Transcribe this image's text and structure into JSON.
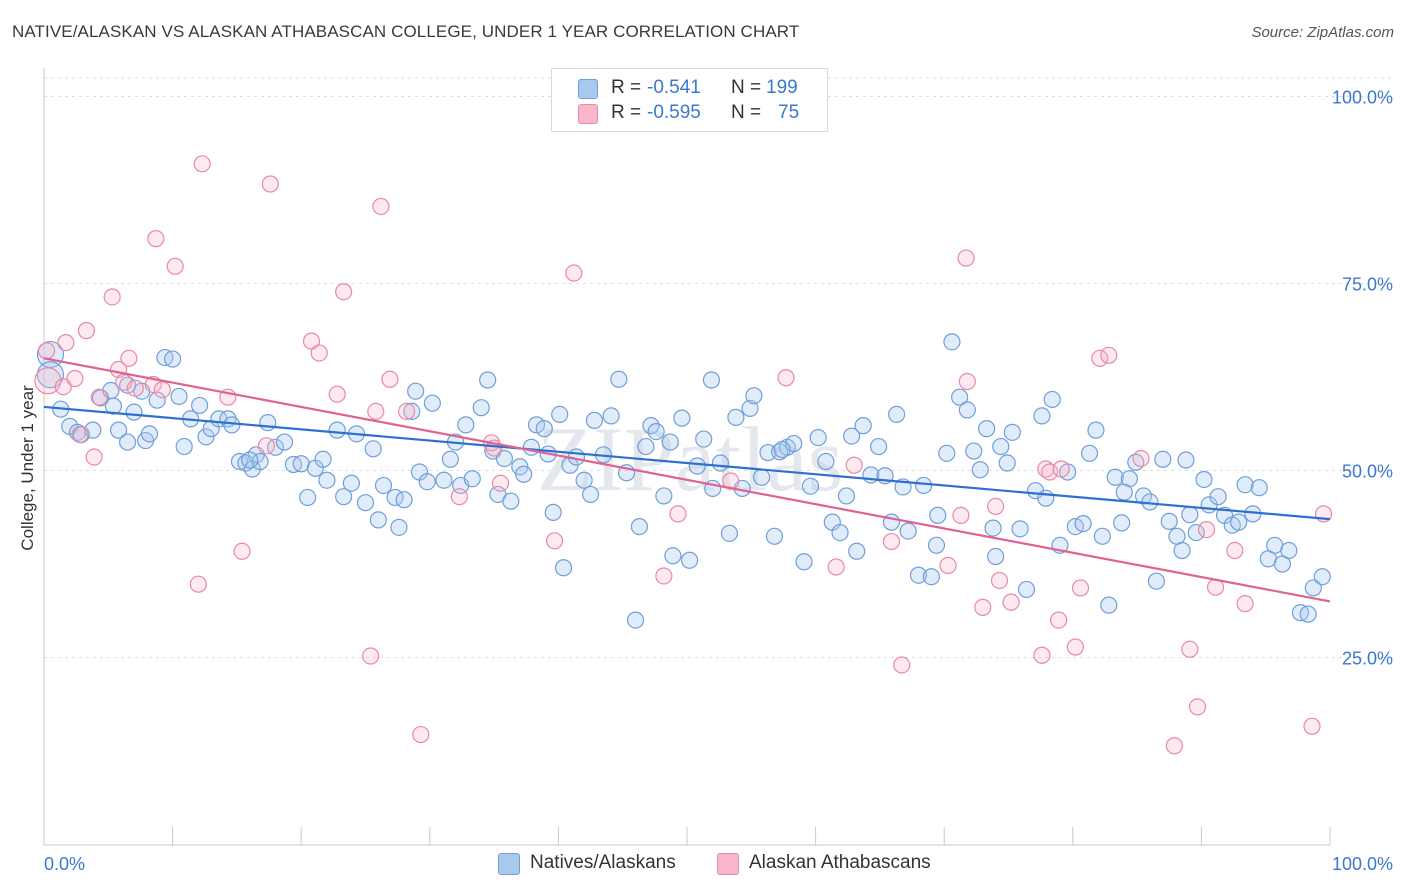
{
  "title": "NATIVE/ALASKAN VS ALASKAN ATHABASCAN COLLEGE, UNDER 1 YEAR CORRELATION CHART",
  "source": "Source: ZipAtlas.com",
  "watermark": "ZIPatlas",
  "legend_top": {
    "rows": [
      {
        "r_label": "R =",
        "r_value": "-0.541",
        "n_label": "N =",
        "n_value": "199",
        "color": "#a9c8f0",
        "border": "#6f9fd8"
      },
      {
        "r_label": "R =",
        "r_value": "-0.595",
        "n_label": "N =",
        "n_value": "75",
        "color": "#f7b6cb",
        "border": "#e889a8"
      }
    ]
  },
  "legend_bottom": [
    {
      "label": "Natives/Alaskans",
      "color": "#a9c8f0",
      "border": "#6f9fd8"
    },
    {
      "label": "Alaskan Athabascans",
      "color": "#f7b6cb",
      "border": "#e889a8"
    }
  ],
  "colors": {
    "blue_line": "#2f6fd0",
    "pink_line": "#e0628f",
    "blue_fill": "rgba(169,200,240,0.35)",
    "blue_stroke": "#6f9fd8",
    "pink_fill": "rgba(247,182,203,0.30)",
    "pink_stroke": "#e889a8",
    "grid": "#dedede",
    "axis_text": "#3b78cf"
  },
  "chart_data": {
    "type": "scatter",
    "title": "NATIVE/ALASKAN VS ALASKAN ATHABASCAN COLLEGE, UNDER 1 YEAR CORRELATION CHART",
    "xlabel": "",
    "ylabel": "College, Under 1 year",
    "xlim": [
      0,
      100
    ],
    "ylim": [
      0,
      100
    ],
    "x_tick_labels": [
      "0.0%",
      "100.0%"
    ],
    "y_tick_labels": [
      "100.0%",
      "75.0%",
      "50.0%",
      "25.0%"
    ],
    "y_ticks": [
      100,
      75,
      50,
      25
    ],
    "grid": "horizontal dashed",
    "legend_position": "top-center",
    "series": [
      {
        "name": "Natives/Alaskans",
        "trend": {
          "x": [
            0,
            100
          ],
          "y": [
            58.5,
            43.5
          ]
        },
        "points": [
          [
            0.5,
            65.5
          ],
          [
            0.5,
            62.8
          ],
          [
            1.3,
            58.2
          ],
          [
            2.0,
            55.9
          ],
          [
            2.6,
            55.1
          ],
          [
            2.9,
            54.8
          ],
          [
            3.8,
            55.4
          ],
          [
            4.4,
            59.7
          ],
          [
            5.2,
            60.7
          ],
          [
            5.4,
            58.6
          ],
          [
            5.8,
            55.4
          ],
          [
            6.5,
            61.4
          ],
          [
            7.0,
            57.8
          ],
          [
            7.6,
            60.6
          ],
          [
            7.9,
            54.0
          ],
          [
            8.2,
            54.9
          ],
          [
            8.8,
            59.4
          ],
          [
            9.4,
            65.1
          ],
          [
            10.0,
            64.9
          ],
          [
            10.5,
            59.9
          ],
          [
            10.9,
            53.2
          ],
          [
            11.4,
            56.9
          ],
          [
            12.1,
            58.7
          ],
          [
            12.6,
            54.5
          ],
          [
            13.0,
            55.6
          ],
          [
            13.6,
            56.9
          ],
          [
            14.3,
            56.9
          ],
          [
            14.6,
            56.1
          ],
          [
            15.2,
            51.2
          ],
          [
            15.7,
            51.0
          ],
          [
            16.2,
            50.2
          ],
          [
            16.5,
            52.1
          ],
          [
            16.8,
            51.2
          ],
          [
            17.4,
            56.4
          ],
          [
            18.0,
            53.1
          ],
          [
            18.7,
            53.8
          ],
          [
            19.4,
            50.8
          ],
          [
            20.0,
            50.9
          ],
          [
            20.5,
            46.4
          ],
          [
            21.1,
            50.3
          ],
          [
            21.7,
            51.5
          ],
          [
            22.0,
            48.7
          ],
          [
            22.8,
            55.4
          ],
          [
            23.3,
            46.5
          ],
          [
            23.9,
            48.3
          ],
          [
            24.3,
            54.9
          ],
          [
            25.0,
            45.7
          ],
          [
            25.6,
            52.9
          ],
          [
            26.0,
            43.4
          ],
          [
            26.4,
            48.0
          ],
          [
            27.3,
            46.4
          ],
          [
            27.6,
            42.4
          ],
          [
            28.0,
            46.1
          ],
          [
            28.6,
            57.9
          ],
          [
            28.9,
            60.6
          ],
          [
            29.2,
            49.8
          ],
          [
            29.8,
            48.5
          ],
          [
            30.2,
            59.0
          ],
          [
            31.1,
            48.7
          ],
          [
            31.6,
            51.5
          ],
          [
            32.0,
            53.8
          ],
          [
            32.4,
            48.0
          ],
          [
            32.8,
            56.1
          ],
          [
            33.3,
            48.9
          ],
          [
            34.0,
            58.4
          ],
          [
            34.5,
            62.1
          ],
          [
            34.9,
            52.6
          ],
          [
            35.3,
            46.8
          ],
          [
            35.8,
            51.6
          ],
          [
            36.3,
            45.9
          ],
          [
            37.0,
            50.5
          ],
          [
            37.9,
            53.1
          ],
          [
            38.3,
            56.1
          ],
          [
            38.9,
            55.6
          ],
          [
            39.2,
            52.2
          ],
          [
            39.6,
            44.4
          ],
          [
            40.1,
            57.5
          ],
          [
            40.4,
            37.0
          ],
          [
            40.9,
            50.7
          ],
          [
            41.4,
            51.8
          ],
          [
            42.0,
            48.7
          ],
          [
            42.5,
            46.8
          ],
          [
            42.8,
            56.7
          ],
          [
            43.5,
            52.1
          ],
          [
            44.1,
            57.3
          ],
          [
            44.7,
            62.2
          ],
          [
            45.3,
            49.7
          ],
          [
            46.0,
            30.0
          ],
          [
            46.3,
            42.5
          ],
          [
            46.8,
            53.2
          ],
          [
            47.2,
            56.0
          ],
          [
            47.6,
            55.2
          ],
          [
            48.2,
            46.6
          ],
          [
            48.7,
            53.8
          ],
          [
            48.9,
            38.6
          ],
          [
            49.6,
            57.0
          ],
          [
            50.2,
            38.0
          ],
          [
            50.8,
            50.6
          ],
          [
            51.3,
            54.2
          ],
          [
            51.9,
            62.1
          ],
          [
            52.6,
            51.0
          ],
          [
            53.3,
            41.6
          ],
          [
            53.8,
            57.1
          ],
          [
            54.3,
            47.6
          ],
          [
            54.9,
            58.3
          ],
          [
            55.2,
            60.0
          ],
          [
            55.8,
            49.1
          ],
          [
            56.3,
            52.4
          ],
          [
            56.8,
            41.2
          ],
          [
            57.2,
            52.5
          ],
          [
            57.8,
            53.1
          ],
          [
            58.3,
            53.6
          ],
          [
            59.1,
            37.8
          ],
          [
            59.6,
            47.9
          ],
          [
            60.2,
            54.4
          ],
          [
            60.8,
            51.2
          ],
          [
            61.3,
            43.1
          ],
          [
            61.9,
            41.7
          ],
          [
            62.4,
            46.6
          ],
          [
            62.8,
            54.6
          ],
          [
            63.2,
            39.2
          ],
          [
            63.7,
            56.0
          ],
          [
            64.3,
            49.4
          ],
          [
            64.9,
            53.2
          ],
          [
            65.4,
            49.3
          ],
          [
            65.9,
            43.1
          ],
          [
            66.3,
            57.5
          ],
          [
            66.8,
            47.8
          ],
          [
            67.2,
            41.9
          ],
          [
            68.0,
            36.0
          ],
          [
            68.4,
            48.0
          ],
          [
            69.0,
            35.8
          ],
          [
            69.4,
            40.0
          ],
          [
            70.2,
            52.3
          ],
          [
            70.6,
            67.2
          ],
          [
            71.2,
            59.8
          ],
          [
            71.8,
            58.1
          ],
          [
            72.3,
            52.6
          ],
          [
            72.8,
            50.1
          ],
          [
            73.3,
            55.6
          ],
          [
            73.8,
            42.3
          ],
          [
            74.4,
            53.2
          ],
          [
            74.9,
            51.0
          ],
          [
            75.3,
            55.1
          ],
          [
            75.9,
            42.2
          ],
          [
            76.4,
            34.1
          ],
          [
            77.1,
            47.3
          ],
          [
            77.6,
            57.3
          ],
          [
            77.9,
            46.3
          ],
          [
            78.4,
            59.5
          ],
          [
            79.0,
            40.0
          ],
          [
            79.6,
            49.8
          ],
          [
            80.2,
            42.5
          ],
          [
            80.8,
            42.9
          ],
          [
            81.3,
            52.3
          ],
          [
            81.8,
            55.4
          ],
          [
            82.3,
            41.2
          ],
          [
            82.8,
            32.0
          ],
          [
            83.3,
            49.1
          ],
          [
            83.8,
            43.0
          ],
          [
            84.4,
            48.9
          ],
          [
            84.9,
            51.1
          ],
          [
            85.5,
            46.6
          ],
          [
            86.0,
            45.8
          ],
          [
            86.5,
            35.2
          ],
          [
            87.0,
            51.5
          ],
          [
            87.5,
            43.2
          ],
          [
            88.1,
            41.2
          ],
          [
            88.5,
            39.3
          ],
          [
            89.1,
            44.1
          ],
          [
            89.6,
            41.7
          ],
          [
            90.2,
            48.8
          ],
          [
            90.6,
            45.4
          ],
          [
            91.3,
            46.5
          ],
          [
            91.8,
            44.0
          ],
          [
            92.4,
            42.7
          ],
          [
            92.9,
            43.1
          ],
          [
            93.4,
            48.1
          ],
          [
            94.0,
            44.2
          ],
          [
            94.5,
            47.7
          ],
          [
            95.2,
            38.2
          ],
          [
            95.7,
            40.0
          ],
          [
            96.3,
            37.5
          ],
          [
            96.8,
            39.3
          ],
          [
            97.7,
            31.0
          ],
          [
            98.3,
            30.8
          ],
          [
            98.7,
            34.3
          ],
          [
            99.4,
            35.8
          ],
          [
            88.8,
            51.4
          ],
          [
            84.0,
            47.1
          ],
          [
            74.0,
            38.5
          ],
          [
            69.5,
            44.0
          ],
          [
            57.4,
            52.8
          ],
          [
            52.0,
            47.6
          ],
          [
            37.3,
            49.5
          ],
          [
            16.0,
            51.4
          ],
          [
            6.5,
            53.8
          ]
        ]
      },
      {
        "name": "Alaskan Athabascans",
        "trend": {
          "x": [
            0,
            100
          ],
          "y": [
            65.0,
            32.5
          ]
        },
        "points": [
          [
            0.3,
            62.0
          ],
          [
            1.5,
            61.2
          ],
          [
            1.7,
            67.1
          ],
          [
            2.4,
            62.3
          ],
          [
            2.8,
            54.8
          ],
          [
            3.3,
            68.7
          ],
          [
            3.9,
            51.8
          ],
          [
            4.3,
            59.8
          ],
          [
            5.3,
            73.2
          ],
          [
            5.8,
            63.5
          ],
          [
            6.2,
            61.8
          ],
          [
            6.6,
            65.0
          ],
          [
            7.1,
            61.0
          ],
          [
            8.5,
            61.5
          ],
          [
            8.7,
            81.0
          ],
          [
            9.2,
            60.8
          ],
          [
            10.2,
            77.3
          ],
          [
            12.0,
            34.8
          ],
          [
            12.3,
            91.0
          ],
          [
            14.3,
            59.8
          ],
          [
            15.4,
            39.2
          ],
          [
            17.3,
            53.3
          ],
          [
            17.6,
            88.3
          ],
          [
            20.8,
            67.3
          ],
          [
            21.4,
            65.7
          ],
          [
            22.8,
            60.2
          ],
          [
            23.3,
            73.9
          ],
          [
            25.4,
            25.2
          ],
          [
            25.8,
            57.9
          ],
          [
            26.2,
            85.3
          ],
          [
            26.9,
            62.2
          ],
          [
            28.2,
            57.9
          ],
          [
            29.3,
            14.7
          ],
          [
            32.3,
            46.5
          ],
          [
            34.8,
            53.7
          ],
          [
            35.5,
            48.3
          ],
          [
            39.7,
            40.6
          ],
          [
            41.2,
            76.4
          ],
          [
            48.2,
            35.9
          ],
          [
            49.3,
            44.2
          ],
          [
            53.4,
            48.6
          ],
          [
            57.7,
            62.4
          ],
          [
            61.6,
            37.1
          ],
          [
            63.0,
            50.7
          ],
          [
            65.9,
            40.5
          ],
          [
            66.7,
            24.0
          ],
          [
            70.3,
            37.3
          ],
          [
            71.3,
            44.0
          ],
          [
            71.7,
            78.4
          ],
          [
            71.8,
            61.9
          ],
          [
            73.0,
            31.7
          ],
          [
            74.0,
            45.2
          ],
          [
            74.3,
            35.3
          ],
          [
            75.2,
            32.4
          ],
          [
            77.6,
            25.3
          ],
          [
            77.9,
            50.2
          ],
          [
            78.2,
            49.8
          ],
          [
            78.9,
            30.0
          ],
          [
            79.1,
            50.2
          ],
          [
            80.2,
            26.4
          ],
          [
            80.6,
            34.3
          ],
          [
            82.1,
            65.0
          ],
          [
            82.8,
            65.4
          ],
          [
            85.3,
            51.6
          ],
          [
            87.9,
            13.2
          ],
          [
            89.1,
            26.1
          ],
          [
            89.7,
            18.4
          ],
          [
            90.4,
            42.1
          ],
          [
            91.1,
            34.4
          ],
          [
            92.6,
            39.3
          ],
          [
            93.4,
            32.2
          ],
          [
            98.6,
            15.8
          ],
          [
            99.5,
            44.2
          ],
          [
            0.2,
            66.0
          ],
          [
            35.0,
            53.0
          ]
        ]
      }
    ]
  }
}
